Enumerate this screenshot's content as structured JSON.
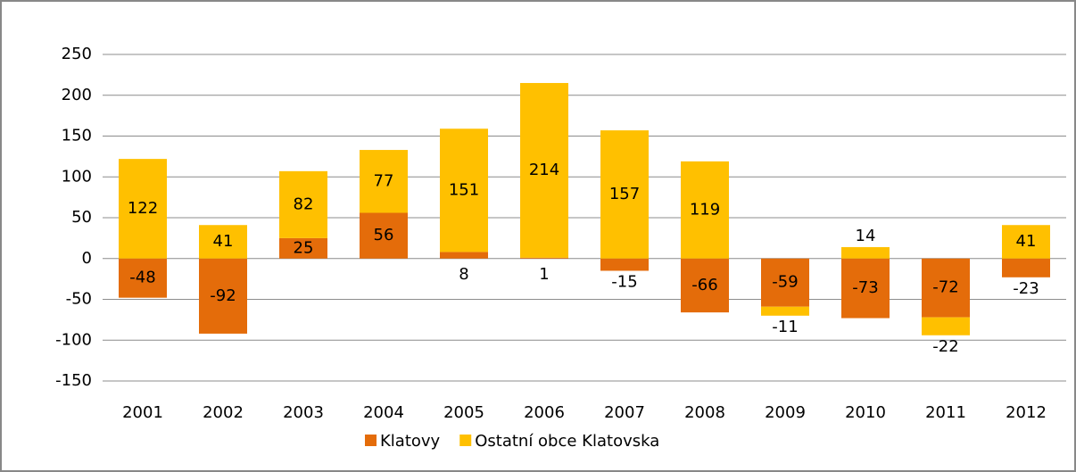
{
  "chart_data": {
    "type": "stacked_bar",
    "categories": [
      "2001",
      "2002",
      "2003",
      "2004",
      "2005",
      "2006",
      "2007",
      "2008",
      "2009",
      "2010",
      "2011",
      "2012"
    ],
    "series": [
      {
        "name": "Klatovy",
        "color": "#e46c0a",
        "values": [
          -48,
          -92,
          25,
          56,
          8,
          1,
          -15,
          -66,
          -59,
          -73,
          -72,
          -23
        ]
      },
      {
        "name": "Ostatní obce Klatovska",
        "color": "#ffc000",
        "values": [
          122,
          41,
          82,
          77,
          151,
          214,
          157,
          119,
          -11,
          14,
          -22,
          41
        ]
      }
    ],
    "ylim": [
      -150,
      250
    ],
    "yticks": [
      -150,
      -100,
      -50,
      0,
      50,
      100,
      150,
      200,
      250
    ],
    "grid": true,
    "legend": "bottom"
  }
}
